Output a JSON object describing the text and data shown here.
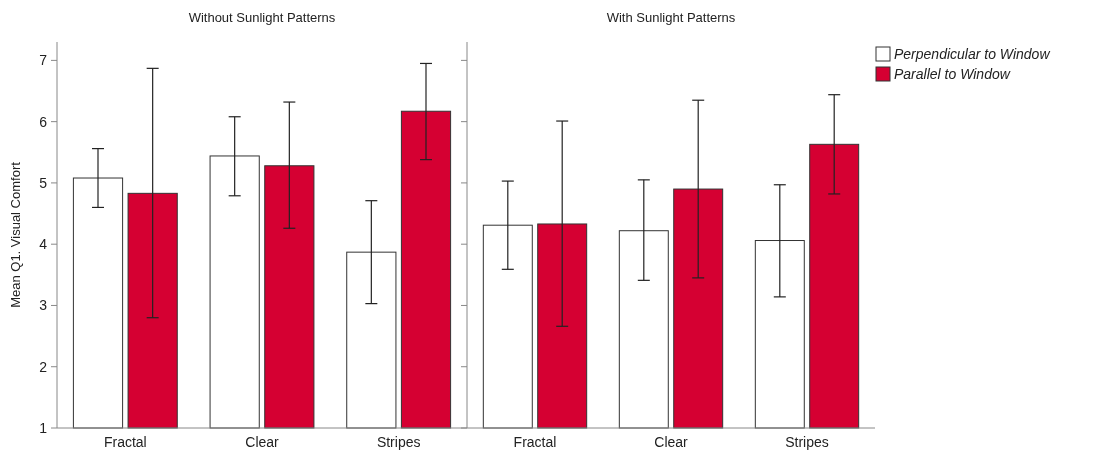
{
  "chart_data": [
    {
      "type": "bar",
      "title": "Without Sunlight Patterns",
      "ylabel": "Mean Q1. Visual Comfort",
      "categories": [
        "Fractal",
        "Clear",
        "Stripes"
      ],
      "ylim": [
        1,
        7.3
      ],
      "yticks": [
        1,
        2,
        3,
        4,
        5,
        6,
        7
      ],
      "grid": false,
      "series": [
        {
          "color": "#ffffff",
          "values": [
            5.08,
            5.44,
            3.87
          ],
          "errors": [
            [
              4.6,
              5.56
            ],
            [
              4.79,
              6.08
            ],
            [
              3.03,
              4.71
            ]
          ]
        },
        {
          "color": "#d50032",
          "values": [
            4.83,
            5.28,
            6.17
          ],
          "errors": [
            [
              2.8,
              6.87
            ],
            [
              4.26,
              6.32
            ],
            [
              5.38,
              6.95
            ]
          ]
        }
      ]
    },
    {
      "type": "bar",
      "title": "With Sunlight Patterns",
      "categories": [
        "Fractal",
        "Clear",
        "Stripes"
      ],
      "ylim": [
        1,
        7.3
      ],
      "yticks": [
        1,
        2,
        3,
        4,
        5,
        6,
        7
      ],
      "tick_labels": "x",
      "legend": "right",
      "grid": false,
      "series": [
        {
          "name": "Perpendicular to Window",
          "color": "#ffffff",
          "values": [
            4.31,
            4.22,
            4.06
          ],
          "errors": [
            [
              3.59,
              5.03
            ],
            [
              3.41,
              5.05
            ],
            [
              3.14,
              4.97
            ]
          ]
        },
        {
          "name": "Parallel to Window",
          "color": "#d50032",
          "values": [
            4.33,
            4.9,
            5.63
          ],
          "errors": [
            [
              2.66,
              6.01
            ],
            [
              3.45,
              6.35
            ],
            [
              4.82,
              6.44
            ]
          ]
        }
      ]
    }
  ]
}
